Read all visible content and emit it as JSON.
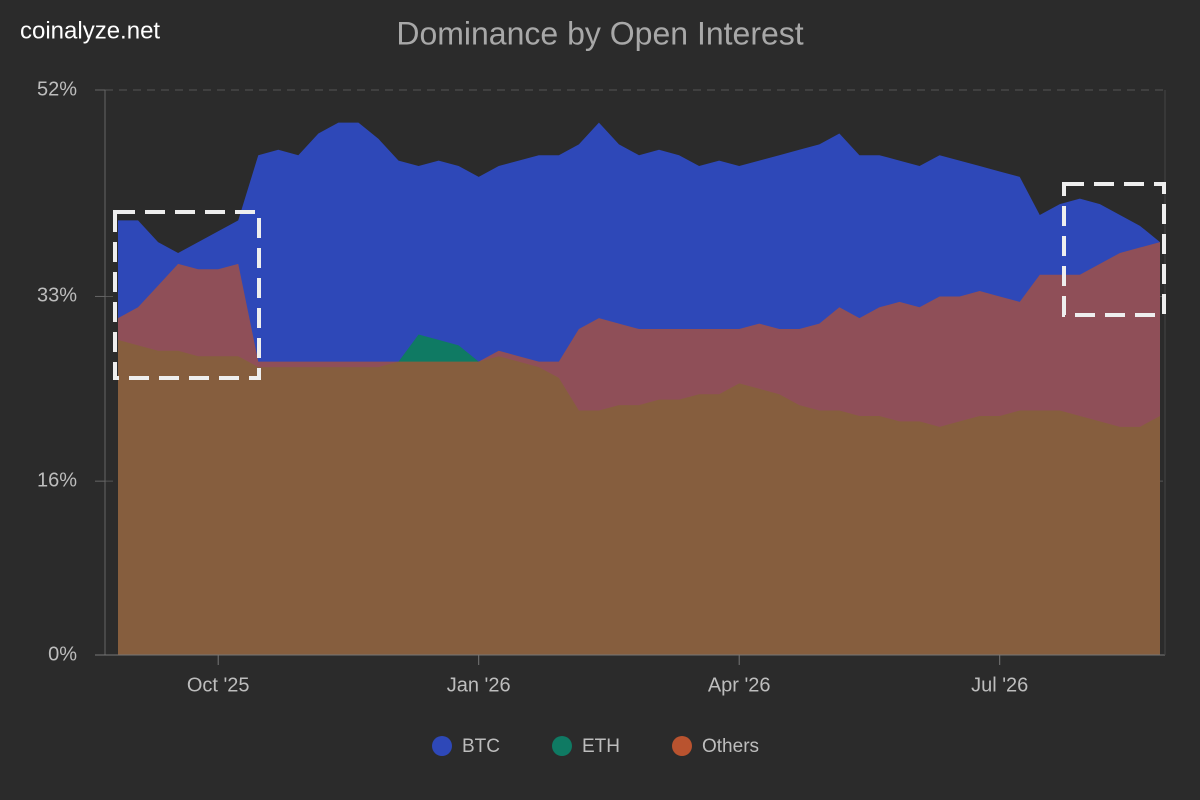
{
  "brand": "coinalyze.net",
  "chart_data": {
    "type": "area",
    "title": "Dominance by Open Interest",
    "categories": [
      null,
      null,
      null,
      null,
      null,
      "Oct '25",
      null,
      null,
      null,
      null,
      null,
      null,
      null,
      null,
      null,
      null,
      null,
      null,
      "Jan '26",
      null,
      null,
      null,
      null,
      null,
      null,
      null,
      null,
      null,
      null,
      null,
      null,
      "Apr '26",
      null,
      null,
      null,
      null,
      null,
      null,
      null,
      null,
      null,
      null,
      null,
      null,
      "Jul '26",
      null,
      null,
      null,
      null,
      null,
      null,
      null,
      null
    ],
    "series": [
      {
        "name": "BTC",
        "color": "#2e48b8",
        "values": [
          40,
          40,
          38,
          37,
          38,
          39,
          40,
          46,
          46.5,
          46,
          48,
          49,
          49,
          47.5,
          45.5,
          45,
          45.5,
          45,
          44,
          45,
          45.5,
          46,
          46,
          47,
          49,
          47,
          46,
          46.5,
          46,
          45,
          45.5,
          45,
          45.5,
          46,
          46.5,
          47,
          48,
          46,
          46,
          45.5,
          45,
          46,
          45.5,
          45,
          44.5,
          44,
          40.5,
          41.5,
          42,
          41.5,
          40.5,
          39.5,
          38
        ]
      },
      {
        "name": "ETH",
        "color": "#0f7a63",
        "values": [
          29,
          28.5,
          28,
          28,
          27.5,
          27.5,
          27.5,
          26.5,
          26.5,
          26.5,
          26.5,
          26.5,
          26.5,
          26.5,
          27,
          29.5,
          29,
          28.5,
          27,
          27.5,
          27,
          26.5,
          25.5,
          22.5,
          22.5,
          23,
          23,
          23.5,
          23.5,
          24,
          24,
          25,
          24.5,
          24,
          23,
          22.5,
          22.5,
          22,
          22,
          21.5,
          21.5,
          21,
          21.5,
          22,
          22,
          22.5,
          22.5,
          22.5,
          22,
          21.5,
          21,
          21,
          22
        ]
      },
      {
        "name": "Others",
        "color": "#b9532f",
        "values": [
          31,
          32,
          34,
          36,
          35.5,
          35.5,
          36,
          27,
          27,
          27,
          27,
          27,
          27,
          27,
          27,
          27,
          27,
          27,
          27,
          28,
          27.5,
          27,
          27,
          30,
          31,
          30.5,
          30,
          30,
          30,
          30,
          30,
          30,
          30.5,
          30,
          30,
          30.5,
          32,
          31,
          32,
          32.5,
          32,
          33,
          33,
          33.5,
          33,
          32.5,
          35,
          35,
          35,
          36,
          37,
          37.5,
          38
        ]
      }
    ],
    "ylim": [
      0,
      52
    ],
    "yticks": [
      {
        "value": 0,
        "label": "0%"
      },
      {
        "value": 16,
        "label": "16%"
      },
      {
        "value": 33,
        "label": "33%"
      },
      {
        "value": 52,
        "label": "52%"
      }
    ],
    "grid": true
  }
}
